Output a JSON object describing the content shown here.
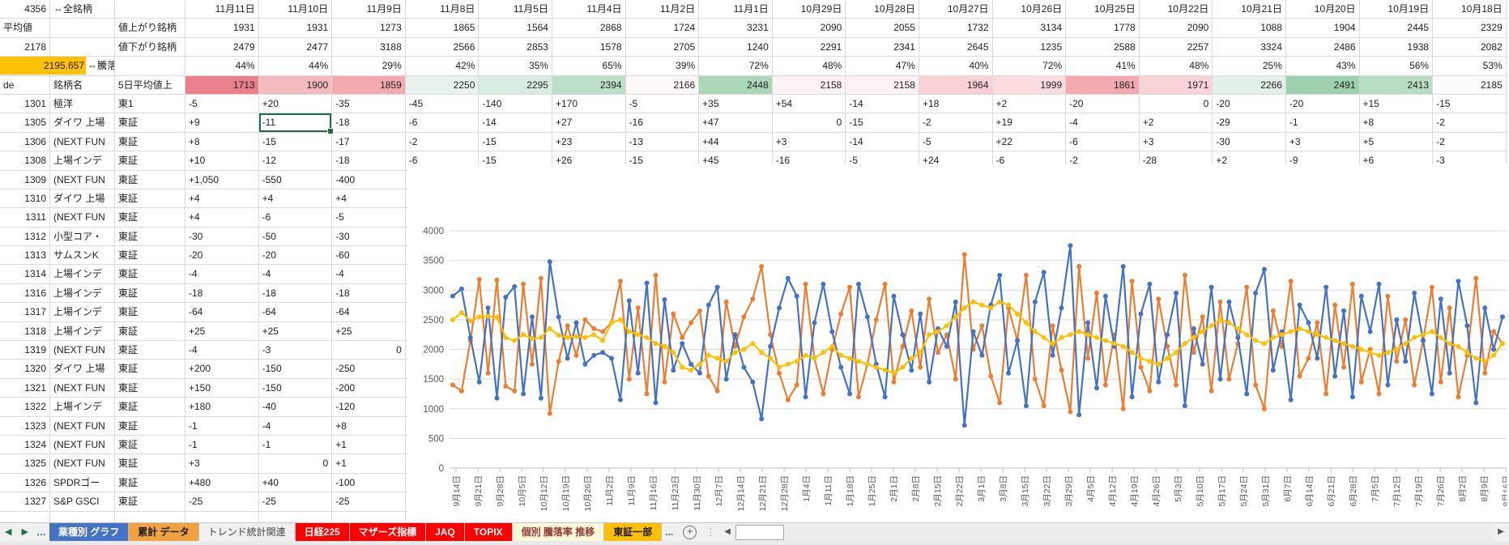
{
  "sheet": {
    "corner": {
      "total_count": "4356",
      "all_issues_label": "⇔全銘柄",
      "avg_label": "平均値",
      "avg_value": "2178",
      "highlight_value": "2195.657",
      "updown_avg_label": "⇔騰落平均",
      "code_label": "de",
      "name_label": "銘柄名",
      "avg5_label": "5日平均値上",
      "advancing_label": "値上がり銘柄",
      "declining_label": "値下がり銘柄"
    },
    "dates": [
      "11月11日",
      "11月10日",
      "11月9日",
      "11月8日",
      "11月5日",
      "11月4日",
      "11月2日",
      "11月1日",
      "10月29日",
      "10月28日",
      "10月27日",
      "10月26日",
      "10月25日",
      "10月22日",
      "10月21日",
      "10月20日",
      "10月19日",
      "10月18日"
    ],
    "advancing": [
      "1931",
      "1931",
      "1273",
      "1865",
      "1564",
      "2868",
      "1724",
      "3231",
      "2090",
      "2055",
      "1732",
      "3134",
      "1778",
      "2090",
      "1088",
      "1904",
      "2445",
      "2329"
    ],
    "declining": [
      "2479",
      "2477",
      "3188",
      "2566",
      "2853",
      "1578",
      "2705",
      "1240",
      "2291",
      "2341",
      "2645",
      "1235",
      "2588",
      "2257",
      "3324",
      "2486",
      "1938",
      "2082"
    ],
    "ratio": [
      "44%",
      "44%",
      "29%",
      "42%",
      "35%",
      "65%",
      "39%",
      "72%",
      "48%",
      "47%",
      "40%",
      "72%",
      "41%",
      "48%",
      "25%",
      "43%",
      "56%",
      "53%"
    ],
    "avg5": [
      {
        "v": "1713",
        "bg": "#E9808C"
      },
      {
        "v": "1900",
        "bg": "#F5BAC0"
      },
      {
        "v": "1859",
        "bg": "#F2A9B0"
      },
      {
        "v": "2250",
        "bg": "#E8F2ED"
      },
      {
        "v": "2295",
        "bg": "#DAECE1"
      },
      {
        "v": "2394",
        "bg": "#BEDFC9"
      },
      {
        "v": "2166",
        "bg": "#FDF8F8"
      },
      {
        "v": "2448",
        "bg": "#ABD6B9"
      },
      {
        "v": "2158",
        "bg": "#FDF3F4"
      },
      {
        "v": "2158",
        "bg": "#FDF3F4"
      },
      {
        "v": "1964",
        "bg": "#F9D1D5"
      },
      {
        "v": "1999",
        "bg": "#FADBDE"
      },
      {
        "v": "1861",
        "bg": "#F2A9B0"
      },
      {
        "v": "1971",
        "bg": "#F9D3D7"
      },
      {
        "v": "2266",
        "bg": "#E3F0E8"
      },
      {
        "v": "2491",
        "bg": "#9ED1AF"
      },
      {
        "v": "2413",
        "bg": "#B8DCC4"
      },
      {
        "v": "2185",
        "bg": "#FBFCFB"
      }
    ],
    "stock_rows": [
      {
        "code": "1301",
        "name": "極洋",
        "market": "東1",
        "vals": [
          "-5",
          "+20",
          "-35",
          "-45",
          "-140",
          "+170",
          "-5",
          "+35",
          "+54",
          "-14",
          "+18",
          "+2",
          "-20",
          "0",
          "-20",
          "-20",
          "+15",
          "-15"
        ]
      },
      {
        "code": "1305",
        "name": "ダイワ 上場",
        "market": "東証",
        "vals": [
          "+9",
          "-11",
          "-18",
          "-6",
          "-14",
          "+27",
          "-16",
          "+47",
          "0",
          "-15",
          "-2",
          "+19",
          "-4",
          "+2",
          "-29",
          "-1",
          "+8",
          "-2"
        ]
      },
      {
        "code": "1306",
        "name": "(NEXT FUN",
        "market": "東証",
        "vals": [
          "+8",
          "-15",
          "-17",
          "-2",
          "-15",
          "+23",
          "-13",
          "+44",
          "+3",
          "-14",
          "-5",
          "+22",
          "-6",
          "+3",
          "-30",
          "+3",
          "+5",
          "-2"
        ]
      },
      {
        "code": "1308",
        "name": "上場インデ",
        "market": "東証",
        "vals": [
          "+10",
          "-12",
          "-18",
          "-6",
          "-15",
          "+26",
          "-15",
          "+45",
          "-16",
          "-5",
          "+24",
          "-6",
          "-2",
          "-28",
          "+2",
          "-9",
          "+6",
          "-3"
        ]
      },
      {
        "code": "1309",
        "name": "(NEXT FUN",
        "market": "東証",
        "vals": [
          "+1,050",
          "-550",
          "-400"
        ]
      },
      {
        "code": "1310",
        "name": "ダイワ 上場",
        "market": "東証",
        "vals": [
          "+4",
          "+4",
          "+4"
        ]
      },
      {
        "code": "1311",
        "name": "(NEXT FUN",
        "market": "東証",
        "vals": [
          "+4",
          "-6",
          "-5"
        ]
      },
      {
        "code": "1312",
        "name": "小型コア・",
        "market": "東証",
        "vals": [
          "-30",
          "-50",
          "-30"
        ]
      },
      {
        "code": "1313",
        "name": "サムスンK",
        "market": "東証",
        "vals": [
          "-20",
          "-20",
          "-60"
        ]
      },
      {
        "code": "1314",
        "name": "上場インデ",
        "market": "東証",
        "vals": [
          "-4",
          "-4",
          "-4"
        ]
      },
      {
        "code": "1316",
        "name": "上場インデ",
        "market": "東証",
        "vals": [
          "-18",
          "-18",
          "-18"
        ]
      },
      {
        "code": "1317",
        "name": "上場インデ",
        "market": "東証",
        "vals": [
          "-64",
          "-64",
          "-64"
        ]
      },
      {
        "code": "1318",
        "name": "上場インデ",
        "market": "東証",
        "vals": [
          "+25",
          "+25",
          "+25"
        ]
      },
      {
        "code": "1319",
        "name": "(NEXT FUN",
        "market": "東証",
        "vals": [
          "-4",
          "-3",
          "0"
        ]
      },
      {
        "code": "1320",
        "name": "ダイワ 上場",
        "market": "東証",
        "vals": [
          "+200",
          "-150",
          "-250"
        ]
      },
      {
        "code": "1321",
        "name": "(NEXT FUN",
        "market": "東証",
        "vals": [
          "+150",
          "-150",
          "-200"
        ]
      },
      {
        "code": "1322",
        "name": "上場インデ",
        "market": "東証",
        "vals": [
          "+180",
          "-40",
          "-120"
        ]
      },
      {
        "code": "1323",
        "name": "(NEXT FUN",
        "market": "東証",
        "vals": [
          "-1",
          "-4",
          "+8"
        ]
      },
      {
        "code": "1324",
        "name": "(NEXT FUN",
        "market": "東証",
        "vals": [
          "-1",
          "-1",
          "+1"
        ]
      },
      {
        "code": "1325",
        "name": "(NEXT FUN",
        "market": "東証",
        "vals": [
          "+3",
          "0",
          "+1"
        ]
      },
      {
        "code": "1326",
        "name": "SPDRゴー",
        "market": "東証",
        "vals": [
          "+480",
          "+40",
          "-100"
        ]
      },
      {
        "code": "1327",
        "name": "S&P GSCI",
        "market": "東証",
        "vals": [
          "-25",
          "-25",
          "-25"
        ]
      }
    ],
    "selection": {
      "code": "1305",
      "col": 1
    }
  },
  "chart_data": {
    "type": "line",
    "title": "",
    "grid": true,
    "legend": "none",
    "ylim": [
      0,
      4000
    ],
    "y_ticks": [
      0,
      500,
      1000,
      1500,
      2000,
      2500,
      3000,
      3500,
      4000
    ],
    "x_label_rotation": -90,
    "x_labels": [
      "9月14日",
      "9月21日",
      "9月28日",
      "10月5日",
      "10月12日",
      "10月19日",
      "10月26日",
      "11月2日",
      "11月9日",
      "11月16日",
      "11月23日",
      "11月30日",
      "12月7日",
      "12月14日",
      "12月21日",
      "12月28日",
      "1月4日",
      "1月11日",
      "1月18日",
      "1月25日",
      "2月1日",
      "2月8日",
      "2月15日",
      "2月22日",
      "3月1日",
      "3月8日",
      "3月15日",
      "3月22日",
      "3月29日",
      "4月5日",
      "4月12日",
      "4月19日",
      "4月26日",
      "5月3日",
      "5月10日",
      "5月17日",
      "5月24日",
      "5月31日",
      "6月7日",
      "6月14日",
      "6月21日",
      "6月28日",
      "7月5日",
      "7月12日",
      "7月19日",
      "7月26日",
      "8月2日",
      "8月9日",
      "8月16日"
    ],
    "series": [
      {
        "name": "値下がり銘柄",
        "color": "#ED7D31",
        "values": [
          1400,
          1300,
          2150,
          3180,
          1600,
          3170,
          1380,
          1300,
          3100,
          1750,
          3200,
          920,
          1800,
          2400,
          1900,
          2500,
          2350,
          2300,
          2450,
          3150,
          1500,
          2700,
          1250,
          3250,
          1450,
          2600,
          2200,
          2450,
          2650,
          1550,
          1300,
          2800,
          2050,
          2550,
          2850,
          3400,
          2250,
          1600,
          1150,
          1400,
          3100,
          1850,
          1250,
          2000,
          2600,
          3050,
          1200,
          1750,
          2500,
          3100,
          1450,
          2050,
          2650,
          1700,
          2850,
          1950,
          2250,
          1500,
          3600,
          2000,
          2400,
          1550,
          1100,
          2700,
          2150,
          3250,
          1500,
          1050,
          2400,
          1650,
          950,
          3400,
          1850,
          2950,
          1400,
          2250,
          1000,
          3150,
          1700,
          1300,
          2850,
          2050,
          1400,
          3250,
          1950,
          2550,
          1300,
          2800,
          1500,
          2100,
          3050,
          1400,
          1000,
          2650,
          2050,
          3150,
          1550,
          1850,
          2450,
          1250,
          2750,
          1700,
          3100,
          1450,
          2000,
          1250,
          2900,
          1800,
          2500,
          1400,
          2150,
          3050,
          1450,
          2700,
          1200,
          1900,
          3200,
          1600,
          2300,
          2100
        ]
      },
      {
        "name": "値上がり銘柄",
        "color": "#4472C4",
        "values": [
          2900,
          3020,
          2200,
          1450,
          2700,
          1180,
          2880,
          3060,
          1250,
          2550,
          1180,
          3480,
          2550,
          1850,
          2450,
          1750,
          1900,
          1950,
          1850,
          1150,
          2820,
          1600,
          3120,
          1100,
          2840,
          1650,
          2100,
          1750,
          1600,
          2750,
          3050,
          1500,
          2250,
          1700,
          1450,
          830,
          2050,
          2700,
          3200,
          2900,
          1200,
          2450,
          3100,
          2300,
          1700,
          1250,
          3100,
          2550,
          1750,
          1200,
          2900,
          2250,
          1650,
          2600,
          1450,
          2350,
          2050,
          2800,
          720,
          2300,
          1900,
          2750,
          3250,
          1600,
          2150,
          1050,
          2800,
          3300,
          1900,
          2700,
          3750,
          900,
          2450,
          1350,
          2900,
          2050,
          3400,
          1200,
          2600,
          3100,
          1450,
          2250,
          2950,
          1050,
          2350,
          1750,
          3050,
          1500,
          2800,
          2200,
          1250,
          2950,
          3350,
          1650,
          2300,
          1150,
          2750,
          2450,
          1850,
          3050,
          1550,
          2650,
          1200,
          2900,
          2300,
          3100,
          1400,
          2500,
          1800,
          2950,
          2150,
          1250,
          2850,
          1600,
          3150,
          2400,
          1100,
          2700,
          2000,
          2550
        ]
      },
      {
        "name": "5日平均",
        "color": "#FFC000",
        "values": [
          2500,
          2620,
          2480,
          2550,
          2560,
          2540,
          2200,
          2150,
          2250,
          2180,
          2200,
          2350,
          2240,
          2200,
          2220,
          2200,
          2250,
          2150,
          2450,
          2500,
          2300,
          2250,
          2200,
          2100,
          2050,
          1950,
          1700,
          1650,
          1750,
          1900,
          1850,
          1800,
          1950,
          2000,
          2100,
          1950,
          1850,
          1700,
          1750,
          1800,
          1900,
          1850,
          1950,
          2050,
          1900,
          1850,
          1800,
          1750,
          1700,
          1650,
          1600,
          1700,
          1850,
          1950,
          2250,
          2300,
          2400,
          2550,
          2700,
          2800,
          2750,
          2700,
          2800,
          2750,
          2600,
          2450,
          2300,
          2200,
          2100,
          2200,
          2250,
          2300,
          2250,
          2200,
          2150,
          2100,
          2050,
          1950,
          1850,
          1800,
          1750,
          1850,
          1950,
          2100,
          2200,
          2300,
          2400,
          2500,
          2450,
          2350,
          2250,
          2150,
          2100,
          2200,
          2250,
          2300,
          2350,
          2300,
          2250,
          2200,
          2150,
          2100,
          2050,
          2000,
          1950,
          1900,
          1950,
          2000,
          2100,
          2200,
          2250,
          2300,
          2200,
          2100,
          2050,
          1950,
          1850,
          1800,
          1900,
          2100
        ]
      }
    ]
  },
  "tabbar": {
    "nav_left": "◀",
    "nav_right": "▶",
    "overflow_left": "…",
    "tabs": [
      {
        "label": "業種別 グラフ",
        "bg": "#4472C4",
        "color": "#ffffff",
        "bold": true
      },
      {
        "label": "累計 データ",
        "bg": "#F0A23E",
        "color": "#1a1a1a",
        "bold": true
      },
      {
        "label": "トレンド統計関連",
        "bg": "",
        "color": "#3f3f3f",
        "bold": false
      },
      {
        "label": "日経225",
        "bg": "#FF0000",
        "color": "#ffffff",
        "bold": true
      },
      {
        "label": "マザーズ指標",
        "bg": "#FF0000",
        "color": "#ffffff",
        "bold": true
      },
      {
        "label": "JAQ",
        "bg": "#FF0000",
        "color": "#ffffff",
        "bold": true
      },
      {
        "label": "TOPIX",
        "bg": "#FF0000",
        "color": "#ffffff",
        "bold": true
      },
      {
        "label": "個別 騰落率 推移",
        "bg": "#FDF9D8",
        "color": "#953735",
        "bold": true
      },
      {
        "label": "東証一部",
        "bg": "#FFC000",
        "color": "#1a1a1a",
        "bold": true
      }
    ],
    "overflow_right": "...",
    "add_label": "+",
    "scroll_left": "◀",
    "scroll_right": "▶"
  },
  "colors": {
    "selection": "#1d6f42",
    "gridline": "#dadada",
    "highlight": "#FFC000",
    "axis_text": "#595959"
  }
}
